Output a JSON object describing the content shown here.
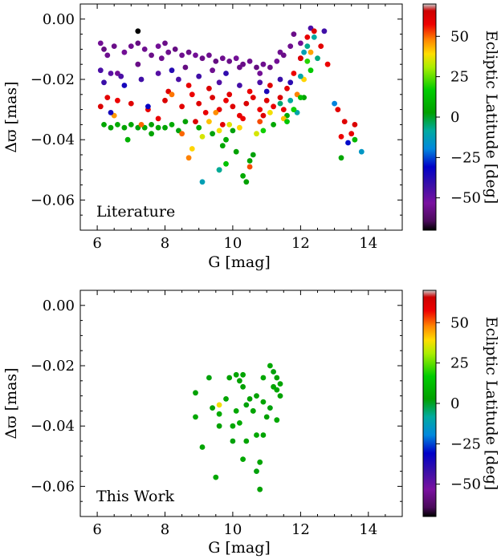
{
  "figure": {
    "xlabel": "G [mag]",
    "ylabel": "Δϖ [mas]",
    "colorbar_label": "Ecliptic Latitude [deg]",
    "colorbar_ticks": [
      50,
      25,
      0,
      -25,
      -50
    ],
    "colorbar_tick_labels": [
      "50",
      "25",
      "0",
      "−25",
      "−50"
    ]
  },
  "chart_data": [
    {
      "type": "scatter",
      "panel_label": "Literature",
      "xlabel": "G [mag]",
      "ylabel": "Δϖ [mas]",
      "xlim": [
        5.5,
        15.0
      ],
      "ylim": [
        -0.07,
        0.005
      ],
      "xticks": [
        6,
        8,
        10,
        12,
        14
      ],
      "yticks": [
        0.0,
        -0.02,
        -0.04,
        -0.06
      ],
      "ytick_labels": [
        "0.00",
        "−0.02",
        "−0.04",
        "−0.06"
      ],
      "color_by": "ecliptic_latitude_deg",
      "clim": [
        -70,
        70
      ],
      "points": [
        [
          6.1,
          -0.008,
          -55
        ],
        [
          6.2,
          -0.01,
          -58
        ],
        [
          6.3,
          -0.012,
          -56
        ],
        [
          6.5,
          -0.009,
          -57
        ],
        [
          6.8,
          -0.011,
          -55
        ],
        [
          7.0,
          -0.009,
          -56
        ],
        [
          7.2,
          -0.008,
          -58
        ],
        [
          7.4,
          -0.01,
          -56
        ],
        [
          7.6,
          -0.012,
          -57
        ],
        [
          7.8,
          -0.009,
          -55
        ],
        [
          8.0,
          -0.008,
          -57
        ],
        [
          8.1,
          -0.011,
          -56
        ],
        [
          8.3,
          -0.01,
          -58
        ],
        [
          8.5,
          -0.012,
          -56
        ],
        [
          8.7,
          -0.011,
          -57
        ],
        [
          8.9,
          -0.012,
          -55
        ],
        [
          9.1,
          -0.013,
          -57
        ],
        [
          9.3,
          -0.012,
          -56
        ],
        [
          9.5,
          -0.014,
          -58
        ],
        [
          9.7,
          -0.013,
          -56
        ],
        [
          9.9,
          -0.014,
          -57
        ],
        [
          10.1,
          -0.013,
          -55
        ],
        [
          10.3,
          -0.015,
          -57
        ],
        [
          10.5,
          -0.014,
          -56
        ],
        [
          10.7,
          -0.016,
          -58
        ],
        [
          10.9,
          -0.015,
          -56
        ],
        [
          11.1,
          -0.016,
          -57
        ],
        [
          11.3,
          -0.014,
          -55
        ],
        [
          11.5,
          -0.012,
          -57
        ],
        [
          11.7,
          -0.009,
          -56
        ],
        [
          6.6,
          -0.018,
          -55
        ],
        [
          7.2,
          -0.015,
          -57
        ],
        [
          7.9,
          -0.013,
          -56
        ],
        [
          8.6,
          -0.016,
          -58
        ],
        [
          9.4,
          -0.017,
          -56
        ],
        [
          10.2,
          -0.016,
          -57
        ],
        [
          10.8,
          -0.018,
          -55
        ],
        [
          11.4,
          -0.011,
          -56
        ],
        [
          11.8,
          -0.005,
          -57
        ],
        [
          12.0,
          -0.008,
          -55
        ],
        [
          6.1,
          -0.017,
          -45
        ],
        [
          6.2,
          -0.021,
          -42
        ],
        [
          6.4,
          -0.018,
          -48
        ],
        [
          6.7,
          -0.019,
          -45
        ],
        [
          7.3,
          -0.02,
          -43
        ],
        [
          7.8,
          -0.018,
          -47
        ],
        [
          8.4,
          -0.02,
          -45
        ],
        [
          9.0,
          -0.019,
          -43
        ],
        [
          9.6,
          -0.021,
          -46
        ],
        [
          10.2,
          -0.022,
          -44
        ],
        [
          10.8,
          -0.021,
          -45
        ],
        [
          11.4,
          -0.02,
          -42
        ],
        [
          12.0,
          -0.013,
          -44
        ],
        [
          12.3,
          -0.003,
          -45
        ],
        [
          12.7,
          -0.004,
          -43
        ],
        [
          6.8,
          -0.022,
          -35
        ],
        [
          8.2,
          -0.017,
          -38
        ],
        [
          9.8,
          -0.018,
          -40
        ],
        [
          11.0,
          -0.024,
          -36
        ],
        [
          11.7,
          -0.021,
          -39
        ],
        [
          6.1,
          -0.029,
          62
        ],
        [
          6.3,
          -0.026,
          60
        ],
        [
          6.6,
          -0.027,
          58
        ],
        [
          7.0,
          -0.028,
          61
        ],
        [
          7.5,
          -0.03,
          59
        ],
        [
          8.0,
          -0.027,
          62
        ],
        [
          8.5,
          -0.029,
          60
        ],
        [
          8.8,
          -0.025,
          58
        ],
        [
          9.0,
          -0.028,
          61
        ],
        [
          9.2,
          -0.031,
          59
        ],
        [
          9.4,
          -0.026,
          62
        ],
        [
          9.6,
          -0.03,
          60
        ],
        [
          9.8,
          -0.027,
          58
        ],
        [
          10.0,
          -0.029,
          61
        ],
        [
          10.2,
          -0.032,
          59
        ],
        [
          10.4,
          -0.028,
          62
        ],
        [
          10.6,
          -0.026,
          60
        ],
        [
          10.8,
          -0.03,
          58
        ],
        [
          11.0,
          -0.027,
          61
        ],
        [
          11.2,
          -0.029,
          59
        ],
        [
          11.4,
          -0.026,
          62
        ],
        [
          11.6,
          -0.023,
          60
        ],
        [
          11.8,
          -0.018,
          58
        ],
        [
          12.0,
          -0.013,
          61
        ],
        [
          12.2,
          -0.006,
          59
        ],
        [
          12.4,
          -0.004,
          62
        ],
        [
          12.6,
          -0.009,
          60
        ],
        [
          12.8,
          -0.015,
          58
        ],
        [
          8.1,
          -0.024,
          61
        ],
        [
          8.7,
          -0.022,
          59
        ],
        [
          9.3,
          -0.023,
          62
        ],
        [
          9.9,
          -0.025,
          60
        ],
        [
          10.5,
          -0.024,
          58
        ],
        [
          11.1,
          -0.022,
          61
        ],
        [
          7.8,
          -0.033,
          59
        ],
        [
          8.9,
          -0.034,
          62
        ],
        [
          9.7,
          -0.035,
          60
        ],
        [
          10.3,
          -0.033,
          58
        ],
        [
          10.9,
          -0.032,
          61
        ],
        [
          11.5,
          -0.03,
          59
        ],
        [
          13.0,
          -0.028,
          -20
        ],
        [
          13.1,
          -0.03,
          60
        ],
        [
          13.3,
          -0.034,
          61
        ],
        [
          13.5,
          -0.038,
          59
        ],
        [
          13.6,
          -0.04,
          10
        ],
        [
          13.8,
          -0.044,
          -15
        ],
        [
          13.2,
          -0.039,
          58
        ],
        [
          13.4,
          -0.041,
          -30
        ],
        [
          13.6,
          -0.035,
          62
        ],
        [
          13.2,
          -0.046,
          5
        ],
        [
          6.2,
          -0.035,
          5
        ],
        [
          6.4,
          -0.036,
          3
        ],
        [
          6.6,
          -0.035,
          6
        ],
        [
          6.8,
          -0.036,
          4
        ],
        [
          7.0,
          -0.035,
          5
        ],
        [
          7.2,
          -0.036,
          2
        ],
        [
          7.4,
          -0.036,
          6
        ],
        [
          7.6,
          -0.035,
          3
        ],
        [
          7.8,
          -0.036,
          5
        ],
        [
          8.0,
          -0.036,
          4
        ],
        [
          8.2,
          -0.035,
          6
        ],
        [
          8.4,
          -0.037,
          2
        ],
        [
          6.9,
          -0.04,
          8
        ],
        [
          7.6,
          -0.038,
          4
        ],
        [
          8.6,
          -0.034,
          3
        ],
        [
          9.0,
          -0.036,
          5
        ],
        [
          9.4,
          -0.038,
          2
        ],
        [
          9.8,
          -0.04,
          6
        ],
        [
          10.1,
          -0.044,
          3
        ],
        [
          10.5,
          -0.047,
          4
        ],
        [
          10.6,
          -0.045,
          2
        ],
        [
          9.6,
          -0.05,
          5
        ],
        [
          10.3,
          -0.052,
          6
        ],
        [
          10.4,
          -0.054,
          3
        ],
        [
          9.7,
          -0.042,
          5
        ],
        [
          10.0,
          -0.037,
          2
        ],
        [
          11.6,
          -0.032,
          6
        ],
        [
          11.8,
          -0.03,
          3
        ],
        [
          12.1,
          -0.026,
          4
        ],
        [
          11.2,
          -0.035,
          5
        ],
        [
          8.8,
          -0.043,
          40
        ],
        [
          9.1,
          -0.039,
          35
        ],
        [
          9.3,
          -0.034,
          42
        ],
        [
          9.6,
          -0.037,
          38
        ],
        [
          9.9,
          -0.035,
          36
        ],
        [
          10.2,
          -0.036,
          40
        ],
        [
          10.7,
          -0.038,
          35
        ],
        [
          11.1,
          -0.031,
          38
        ],
        [
          11.5,
          -0.033,
          42
        ],
        [
          12.1,
          -0.02,
          40
        ],
        [
          8.5,
          -0.038,
          50
        ],
        [
          8.7,
          -0.046,
          48
        ],
        [
          10.5,
          -0.049,
          52
        ],
        [
          9.5,
          -0.031,
          47
        ],
        [
          7.3,
          -0.035,
          50
        ],
        [
          12.3,
          -0.011,
          45
        ],
        [
          11.9,
          -0.025,
          48
        ],
        [
          10.8,
          -0.034,
          52
        ],
        [
          8.2,
          -0.025,
          49
        ],
        [
          6.5,
          -0.032,
          46
        ],
        [
          11.4,
          -0.028,
          -5
        ],
        [
          11.7,
          -0.027,
          -8
        ],
        [
          12.0,
          -0.019,
          -10
        ],
        [
          12.1,
          -0.011,
          -12
        ],
        [
          12.2,
          -0.009,
          -7
        ],
        [
          12.4,
          -0.006,
          -9
        ],
        [
          12.5,
          -0.013,
          -6
        ],
        [
          11.9,
          -0.031,
          -10
        ],
        [
          9.6,
          -0.05,
          -8
        ],
        [
          9.1,
          -0.054,
          -12
        ],
        [
          11.6,
          -0.034,
          15
        ],
        [
          11.8,
          -0.03,
          18
        ],
        [
          12.0,
          -0.026,
          12
        ],
        [
          12.2,
          -0.014,
          20
        ],
        [
          12.3,
          -0.017,
          16
        ],
        [
          9.8,
          -0.048,
          14
        ],
        [
          10.9,
          -0.037,
          18
        ],
        [
          6.4,
          -0.031,
          -35
        ],
        [
          7.5,
          -0.029,
          -32
        ],
        [
          7.2,
          -0.004,
          -70
        ]
      ]
    },
    {
      "type": "scatter",
      "panel_label": "This Work",
      "xlabel": "G [mag]",
      "ylabel": "Δϖ [mas]",
      "xlim": [
        5.5,
        15.0
      ],
      "ylim": [
        -0.07,
        0.005
      ],
      "xticks": [
        6,
        8,
        10,
        12,
        14
      ],
      "yticks": [
        0.0,
        -0.02,
        -0.04,
        -0.06
      ],
      "ytick_labels": [
        "0.00",
        "−0.02",
        "−0.04",
        "−0.06"
      ],
      "color_by": "ecliptic_latitude_deg",
      "clim": [
        -70,
        70
      ],
      "points": [
        [
          8.9,
          -0.029,
          3
        ],
        [
          8.9,
          -0.037,
          5
        ],
        [
          9.1,
          -0.047,
          4
        ],
        [
          9.3,
          -0.024,
          2
        ],
        [
          9.4,
          -0.034,
          3
        ],
        [
          9.5,
          -0.057,
          5
        ],
        [
          9.6,
          -0.036,
          6
        ],
        [
          9.6,
          -0.04,
          3
        ],
        [
          9.6,
          -0.033,
          38
        ],
        [
          9.8,
          -0.031,
          4
        ],
        [
          9.9,
          -0.024,
          3
        ],
        [
          10.0,
          -0.04,
          5
        ],
        [
          10.0,
          -0.045,
          2
        ],
        [
          10.1,
          -0.023,
          4
        ],
        [
          10.1,
          -0.035,
          5
        ],
        [
          10.2,
          -0.025,
          3
        ],
        [
          10.2,
          -0.039,
          6
        ],
        [
          10.3,
          -0.023,
          4
        ],
        [
          10.3,
          -0.027,
          3
        ],
        [
          10.3,
          -0.051,
          5
        ],
        [
          10.4,
          -0.033,
          2
        ],
        [
          10.4,
          -0.045,
          4
        ],
        [
          10.5,
          -0.031,
          3
        ],
        [
          10.6,
          -0.035,
          5
        ],
        [
          10.6,
          -0.035,
          4
        ],
        [
          10.7,
          -0.03,
          3
        ],
        [
          10.7,
          -0.043,
          5
        ],
        [
          10.7,
          -0.055,
          2
        ],
        [
          10.8,
          -0.052,
          4
        ],
        [
          10.8,
          -0.061,
          3
        ],
        [
          10.9,
          -0.024,
          5
        ],
        [
          10.9,
          -0.032,
          4
        ],
        [
          11.0,
          -0.037,
          3
        ],
        [
          11.1,
          -0.02,
          5
        ],
        [
          11.2,
          -0.022,
          2
        ],
        [
          11.2,
          -0.027,
          4
        ],
        [
          11.3,
          -0.024,
          3
        ],
        [
          11.3,
          -0.028,
          5
        ],
        [
          11.4,
          -0.026,
          4
        ],
        [
          11.4,
          -0.03,
          3
        ],
        [
          11.3,
          -0.038,
          5
        ],
        [
          11.1,
          -0.034,
          2
        ],
        [
          10.9,
          -0.043,
          4
        ]
      ]
    }
  ]
}
